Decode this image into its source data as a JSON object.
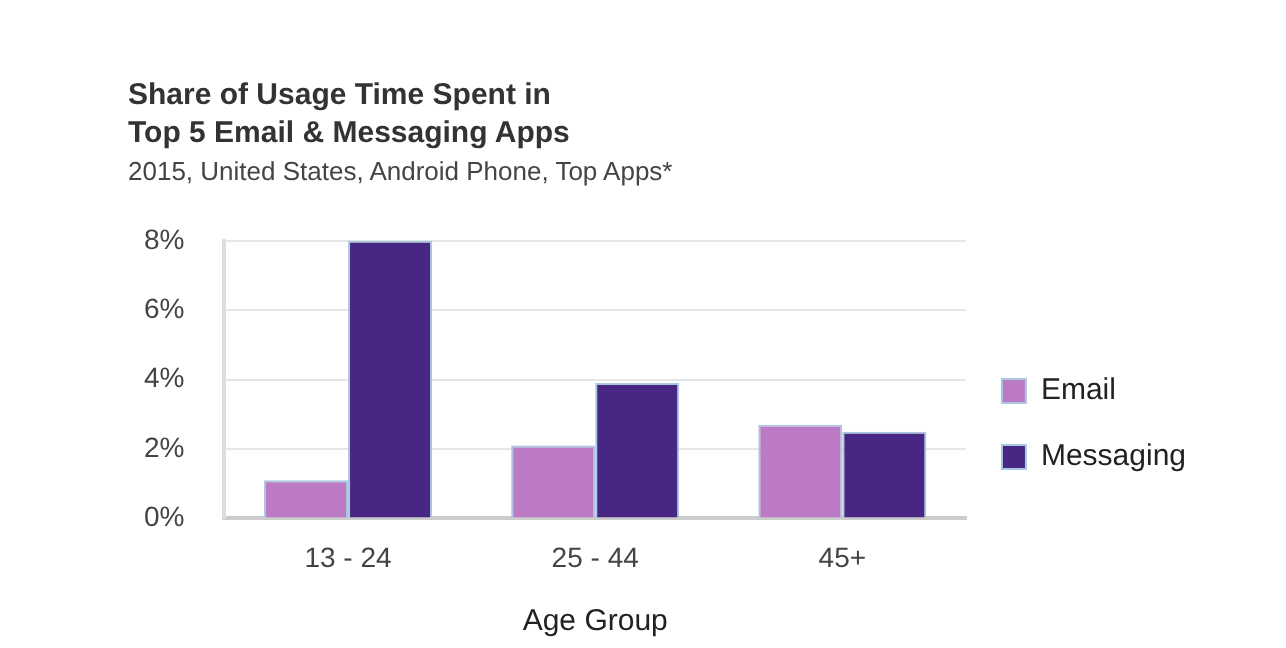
{
  "chart_data": {
    "type": "bar",
    "title": "Share of Usage Time Spent in\nTop 5 Email & Messaging Apps",
    "subtitle": "2015, United States, Android Phone, Top Apps*",
    "xlabel": "Age Group",
    "categories": [
      "13 - 24",
      "25 - 44",
      "45+"
    ],
    "series": [
      {
        "name": "Email",
        "color": "#bd7ac4",
        "values": [
          1.1,
          2.1,
          2.7
        ]
      },
      {
        "name": "Messaging",
        "color": "#482683",
        "values": [
          8.0,
          3.9,
          2.5
        ]
      }
    ],
    "ylim": [
      0,
      8
    ],
    "yticks": [
      {
        "value": 0,
        "label": "0%"
      },
      {
        "value": 2,
        "label": "2%"
      },
      {
        "value": 4,
        "label": "4%"
      },
      {
        "value": 6,
        "label": "6%"
      },
      {
        "value": 8,
        "label": "8%"
      }
    ],
    "grid": "y",
    "legend": "right"
  }
}
